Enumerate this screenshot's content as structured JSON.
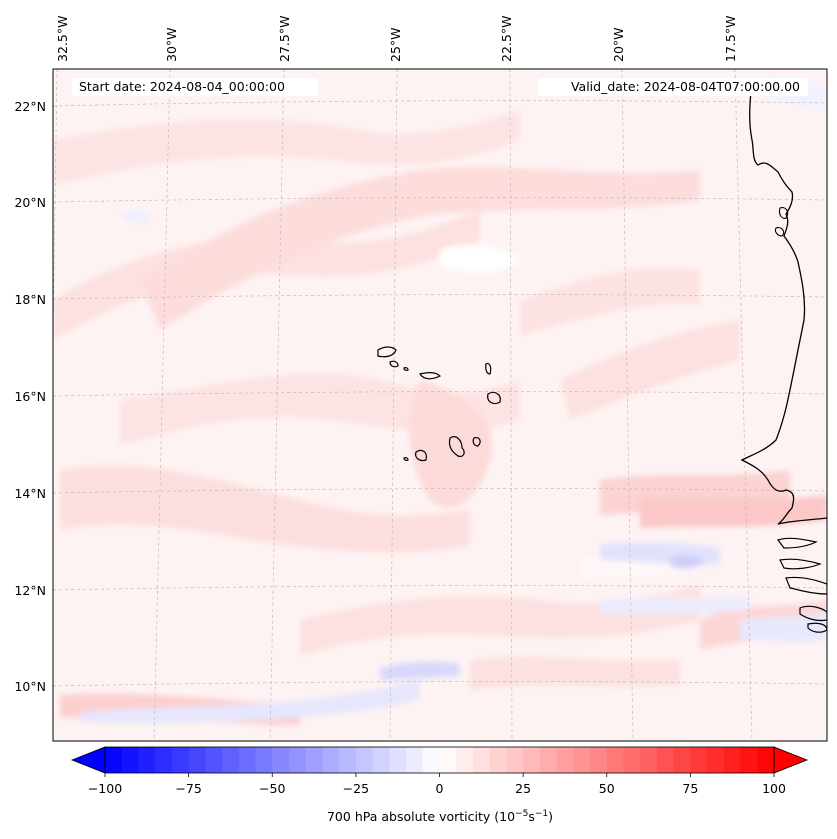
{
  "map": {
    "start_date": "Start date: 2024-08-04_00:00:00",
    "valid_date": "Valid_date: 2024-08-04T07:00:00.00",
    "lon_labels": [
      "32.5°W",
      "30°W",
      "27.5°W",
      "25°W",
      "22.5°W",
      "20°W",
      "17.5°W"
    ],
    "lat_labels": [
      "22°N",
      "20°N",
      "18°N",
      "16°N",
      "14°N",
      "12°N",
      "10°N"
    ],
    "field": "700 hPa absolute vorticity",
    "colors": {
      "neg_max": "#0000ff",
      "zero": "#ffffff",
      "pos_max": "#ff0000",
      "coast": "#000000",
      "grid": "#bbbbbb"
    }
  },
  "colorbar": {
    "ticks": [
      "−100",
      "−75",
      "−50",
      "−25",
      "0",
      "25",
      "50",
      "75",
      "100"
    ],
    "tick_values": [
      -100,
      -75,
      -50,
      -25,
      0,
      25,
      50,
      75,
      100
    ],
    "range": [
      -100,
      100
    ],
    "levels": 40,
    "label_prefix": "700 hPa absolute vorticity (10",
    "label_exp1": "−5",
    "label_mid": "s",
    "label_exp2": "−1",
    "label_suffix": ")"
  }
}
